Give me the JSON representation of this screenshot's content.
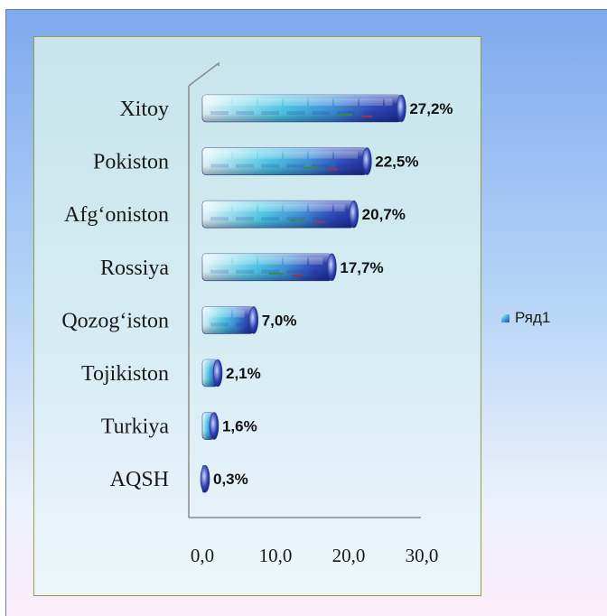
{
  "chart_data": {
    "type": "bar",
    "orientation": "horizontal",
    "categories": [
      "Xitoy",
      "Pokiston",
      "Afg‘oniston",
      "Rossiya",
      "Qozog‘iston",
      "Tojikiston",
      "Turkiya",
      "AQSH"
    ],
    "series": [
      {
        "name": "Ряд1",
        "values": [
          27.2,
          22.5,
          20.7,
          17.7,
          7.0,
          2.1,
          1.6,
          0.3
        ],
        "labels": [
          "27,2%",
          "22,5%",
          "20,7%",
          "17,7%",
          "7,0%",
          "2,1%",
          "1,6%",
          "0,3%"
        ]
      }
    ],
    "xticks": [
      0,
      10,
      20,
      30
    ],
    "xtick_labels": [
      "0,0",
      "10,0",
      "20,0",
      "30,0"
    ],
    "xlim": [
      0,
      30
    ],
    "legend_position": "right",
    "grid": false,
    "colors": {
      "bar_light": "#e4f6fb",
      "bar_mid": "#4cc8e6",
      "bar_dark": "#2236b0",
      "bar_accent": "#3a9a4a",
      "plot_border": "#9a9a44"
    }
  }
}
